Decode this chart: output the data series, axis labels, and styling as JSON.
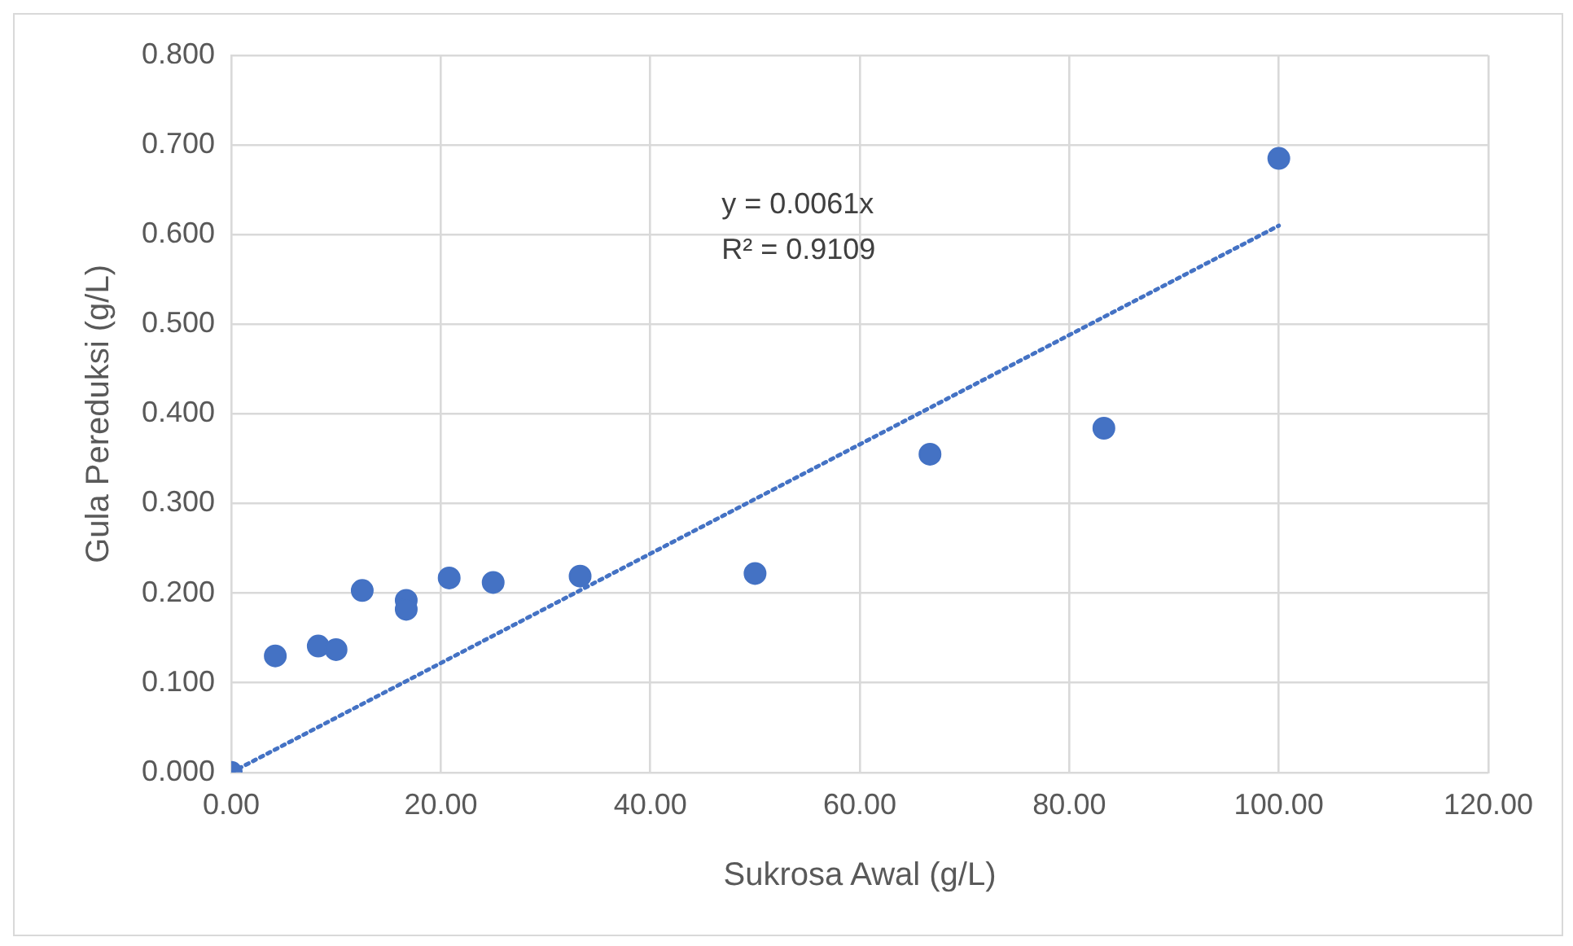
{
  "chart_data": {
    "type": "scatter",
    "xlabel": "Sukrosa Awal (g/L)",
    "ylabel": "Gula Pereduksi (g/L)",
    "series": [
      {
        "type": "scatter",
        "color": "#4472c4",
        "marker": "circle",
        "x": [
          0,
          4.2,
          8.3,
          10,
          12.5,
          16.7,
          16.7,
          20.8,
          25,
          33.3,
          50,
          66.7,
          83.3,
          100
        ],
        "values": [
          0,
          0.13,
          0.141,
          0.137,
          0.203,
          0.192,
          0.182,
          0.217,
          0.212,
          0.219,
          0.222,
          0.355,
          0.384,
          0.685
        ]
      },
      {
        "type": "line",
        "color": "#4472c4",
        "marker": "none",
        "line_style": "dotted",
        "x": [
          0,
          100
        ],
        "values": [
          0,
          0.61
        ]
      }
    ],
    "annotations": [
      "y = 0.0061x",
      "R² = 0.9109"
    ],
    "xlim": [
      0,
      120
    ],
    "xticks": [
      {
        "value": 0,
        "label": "0.00"
      },
      {
        "value": 20,
        "label": "20.00"
      },
      {
        "value": 40,
        "label": "40.00"
      },
      {
        "value": 60,
        "label": "60.00"
      },
      {
        "value": 80,
        "label": "80.00"
      },
      {
        "value": 100,
        "label": "100.00"
      },
      {
        "value": 120,
        "label": "120.00"
      }
    ],
    "ylim": [
      0,
      0.8
    ],
    "yticks": [
      {
        "value": 0,
        "label": "0.000"
      },
      {
        "value": 0.1,
        "label": "0.100"
      },
      {
        "value": 0.2,
        "label": "0.200"
      },
      {
        "value": 0.3,
        "label": "0.300"
      },
      {
        "value": 0.4,
        "label": "0.400"
      },
      {
        "value": 0.5,
        "label": "0.500"
      },
      {
        "value": 0.6,
        "label": "0.600"
      },
      {
        "value": 0.7,
        "label": "0.700"
      },
      {
        "value": 0.8,
        "label": "0.800"
      }
    ],
    "grid": true,
    "legend": false
  }
}
